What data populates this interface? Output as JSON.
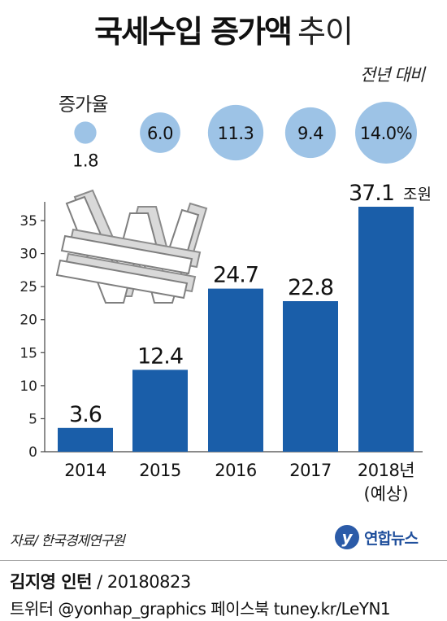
{
  "header": {
    "title_main": "국세수입 증가액",
    "title_sub": "추이",
    "compare_label": "전년 대비"
  },
  "growth": {
    "label": "증가율",
    "values": [
      "1.8",
      "6.0",
      "11.3",
      "9.4",
      "14.0%"
    ],
    "bubble_color": "#9dc3e6"
  },
  "chart_data": {
    "type": "bar",
    "categories": [
      "2014",
      "2015",
      "2016",
      "2017",
      "2018년"
    ],
    "category_notes": [
      "",
      "",
      "",
      "",
      "(예상)"
    ],
    "values": [
      3.6,
      12.4,
      24.7,
      22.8,
      37.1
    ],
    "value_labels": [
      "3.6",
      "12.4",
      "24.7",
      "22.8",
      "37.1"
    ],
    "unit": "조원",
    "growth_rates": [
      1.8,
      6.0,
      11.3,
      9.4,
      14.0
    ],
    "ylim": [
      0,
      37.1
    ],
    "yticks": [
      0,
      5,
      10,
      15,
      20,
      25,
      30,
      35
    ],
    "bar_color": "#1a5ea9",
    "grid": false,
    "legend": "none"
  },
  "footer": {
    "source": "자료/ 한국경제연구원",
    "logo_glyph": "y",
    "logo_name": "연합뉴스",
    "author": "김지영 인턴",
    "date_text": " / 20180823",
    "social": "트위터 @yonhap_graphics  페이스북 tuney.kr/LeYN1"
  },
  "decoration": {
    "icon": "won-sign-icon"
  }
}
